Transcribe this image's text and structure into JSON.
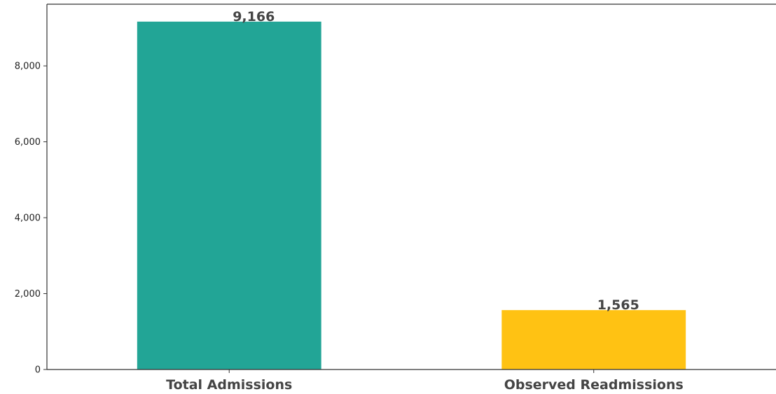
{
  "chart_data": {
    "type": "bar",
    "title": "",
    "xlabel": "",
    "ylabel": "",
    "categories": [
      "Total Admissions",
      "Observed Readmissions"
    ],
    "values": [
      9166,
      1565
    ],
    "value_labels": [
      "9,166",
      "1,565"
    ],
    "colors": [
      "#22a596",
      "#ffc213"
    ],
    "ylim": [
      0,
      9625
    ],
    "yticks": [
      0,
      2000,
      4000,
      6000,
      8000
    ],
    "ytick_labels": [
      "0",
      "2,000",
      "4,000",
      "6,000",
      "8,000"
    ],
    "grid": false,
    "legend": "none"
  }
}
